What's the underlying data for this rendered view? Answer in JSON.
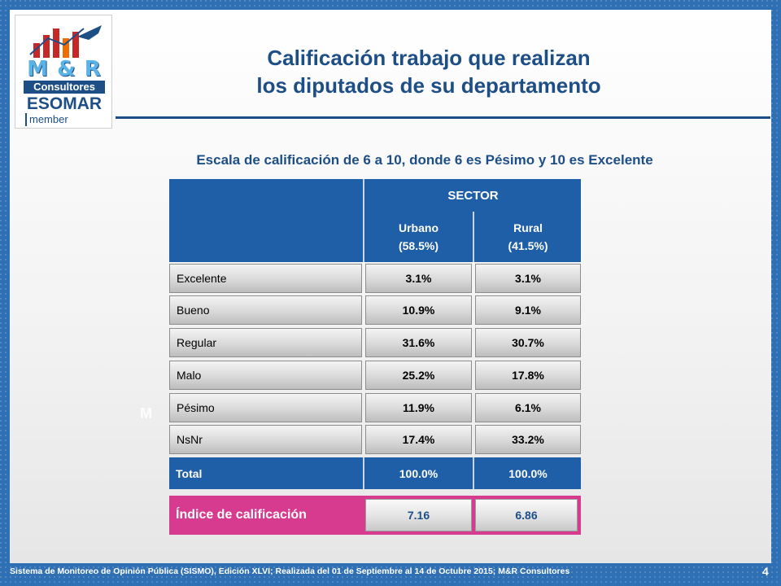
{
  "logo": {
    "brand": "M & R",
    "consultores": "Consultores",
    "esomar": "ESOMAR",
    "member": "member"
  },
  "title": {
    "line1": "Calificación trabajo que realizan",
    "line2": "los diputados de su departamento"
  },
  "subtitle": "Escala de calificación de 6 a 10, donde 6 es Pésimo y 10 es Excelente",
  "watermark": "M",
  "table": {
    "sector_header": "SECTOR",
    "columns": [
      {
        "name": "Urbano",
        "share": "(58.5%)"
      },
      {
        "name": "Rural",
        "share": "(41.5%)"
      }
    ],
    "rows": [
      {
        "label": "Excelente",
        "urbano": "3.1%",
        "rural": "3.1%"
      },
      {
        "label": "Bueno",
        "urbano": "10.9%",
        "rural": "9.1%"
      },
      {
        "label": "Regular",
        "urbano": "31.6%",
        "rural": "30.7%"
      },
      {
        "label": "Malo",
        "urbano": "25.2%",
        "rural": "17.8%"
      },
      {
        "label": "Pésimo",
        "urbano": "11.9%",
        "rural": "6.1%"
      },
      {
        "label": "NsNr",
        "urbano": "17.4%",
        "rural": "33.2%"
      }
    ],
    "total": {
      "label": "Total",
      "urbano": "100.0%",
      "rural": "100.0%"
    },
    "index": {
      "label": "Índice de calificación",
      "urbano": "7.16",
      "rural": "6.86"
    }
  },
  "footer": "Sistema de Monitoreo de Opinión Pública (SISMO), Edición XLVI; Realizada del 01 de Septiembre al 14 de Octubre 2015; M&R Consultores",
  "page_number": "4",
  "colors": {
    "background": "#2f6fb4",
    "header_blue": "#1f5fa8",
    "title_blue": "#1d4f86",
    "index_pink": "#d63b8f"
  }
}
